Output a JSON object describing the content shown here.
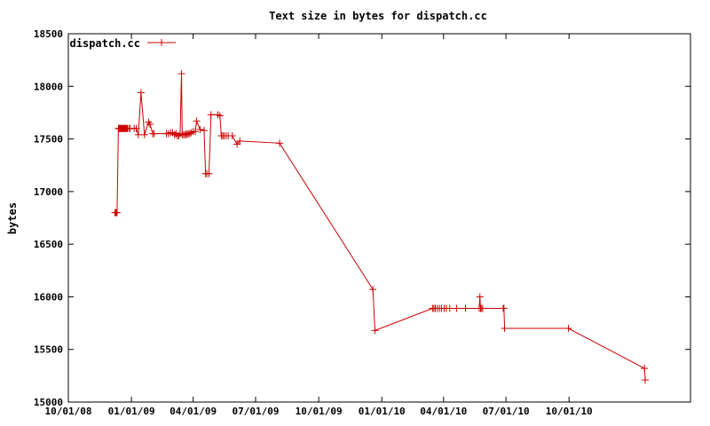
{
  "chart_data": {
    "type": "line",
    "title": "Text size in bytes for dispatch.cc",
    "xlabel": "",
    "ylabel": "bytes",
    "grid": false,
    "legend_position": "top-left",
    "line_color": "#cc0000",
    "x_axis": {
      "type": "date",
      "range": [
        "2008-10-01",
        "2011-03-27"
      ],
      "tick_labels": [
        "10/01/08",
        "01/01/09",
        "04/01/09",
        "07/01/09",
        "10/01/09",
        "01/01/10",
        "04/01/10",
        "07/01/10",
        "10/01/10"
      ]
    },
    "y_axis": {
      "range": [
        15000,
        18500
      ],
      "ticks": [
        15000,
        15500,
        16000,
        16500,
        17000,
        17500,
        18000,
        18500
      ]
    },
    "series": [
      {
        "name": "dispatch.cc",
        "x": [
          "2008-12-08",
          "2008-12-09",
          "2008-12-10",
          "2008-12-11",
          "2008-12-13",
          "2008-12-14",
          "2008-12-15",
          "2008-12-16",
          "2008-12-17",
          "2008-12-18",
          "2008-12-19",
          "2008-12-20",
          "2008-12-21",
          "2008-12-22",
          "2008-12-23",
          "2008-12-24",
          "2008-12-25",
          "2008-12-26",
          "2008-12-28",
          "2008-12-30",
          "2009-01-05",
          "2009-01-08",
          "2009-01-11",
          "2009-01-15",
          "2009-01-20",
          "2009-01-26",
          "2009-01-28",
          "2009-02-01",
          "2009-02-03",
          "2009-02-21",
          "2009-02-24",
          "2009-02-27",
          "2009-03-02",
          "2009-03-05",
          "2009-03-07",
          "2009-03-09",
          "2009-03-11",
          "2009-03-13",
          "2009-03-15",
          "2009-03-16",
          "2009-03-18",
          "2009-03-20",
          "2009-03-22",
          "2009-03-23",
          "2009-03-25",
          "2009-03-27",
          "2009-03-29",
          "2009-04-01",
          "2009-04-04",
          "2009-04-06",
          "2009-04-11",
          "2009-04-17",
          "2009-04-19",
          "2009-04-21",
          "2009-04-24",
          "2009-04-27",
          "2009-05-07",
          "2009-05-10",
          "2009-05-12",
          "2009-05-14",
          "2009-05-16",
          "2009-05-19",
          "2009-05-22",
          "2009-05-28",
          "2009-06-04",
          "2009-06-08",
          "2009-08-05",
          "2009-12-19",
          "2009-12-22",
          "2010-03-16",
          "2010-03-18",
          "2010-03-20",
          "2010-03-23",
          "2010-03-26",
          "2010-03-29",
          "2010-04-02",
          "2010-04-05",
          "2010-04-10",
          "2010-04-20",
          "2010-05-03",
          "2010-05-23",
          "2010-05-24",
          "2010-05-25",
          "2010-05-26",
          "2010-05-28",
          "2010-06-27",
          "2010-06-28",
          "2010-06-29",
          "2010-09-30",
          "2011-01-19",
          "2011-01-20"
        ],
        "y": [
          16800,
          16800,
          16800,
          16800,
          17600,
          17600,
          17600,
          17600,
          17600,
          17600,
          17600,
          17600,
          17600,
          17600,
          17600,
          17600,
          17600,
          17600,
          17600,
          17600,
          17600,
          17600,
          17540,
          17940,
          17540,
          17660,
          17640,
          17550,
          17550,
          17550,
          17550,
          17560,
          17560,
          17540,
          17550,
          17530,
          17530,
          17550,
          18120,
          17540,
          17540,
          17540,
          17550,
          17540,
          17550,
          17550,
          17560,
          17570,
          17570,
          17670,
          17590,
          17580,
          17170,
          17170,
          17170,
          17730,
          17730,
          17720,
          17530,
          17530,
          17530,
          17530,
          17530,
          17530,
          17450,
          17480,
          17460,
          16070,
          15680,
          15890,
          15890,
          15890,
          15890,
          15890,
          15890,
          15890,
          15890,
          15890,
          15890,
          15890,
          15890,
          16000,
          15890,
          15890,
          15890,
          15890,
          15890,
          15700,
          15700,
          15320,
          15210
        ]
      }
    ]
  }
}
